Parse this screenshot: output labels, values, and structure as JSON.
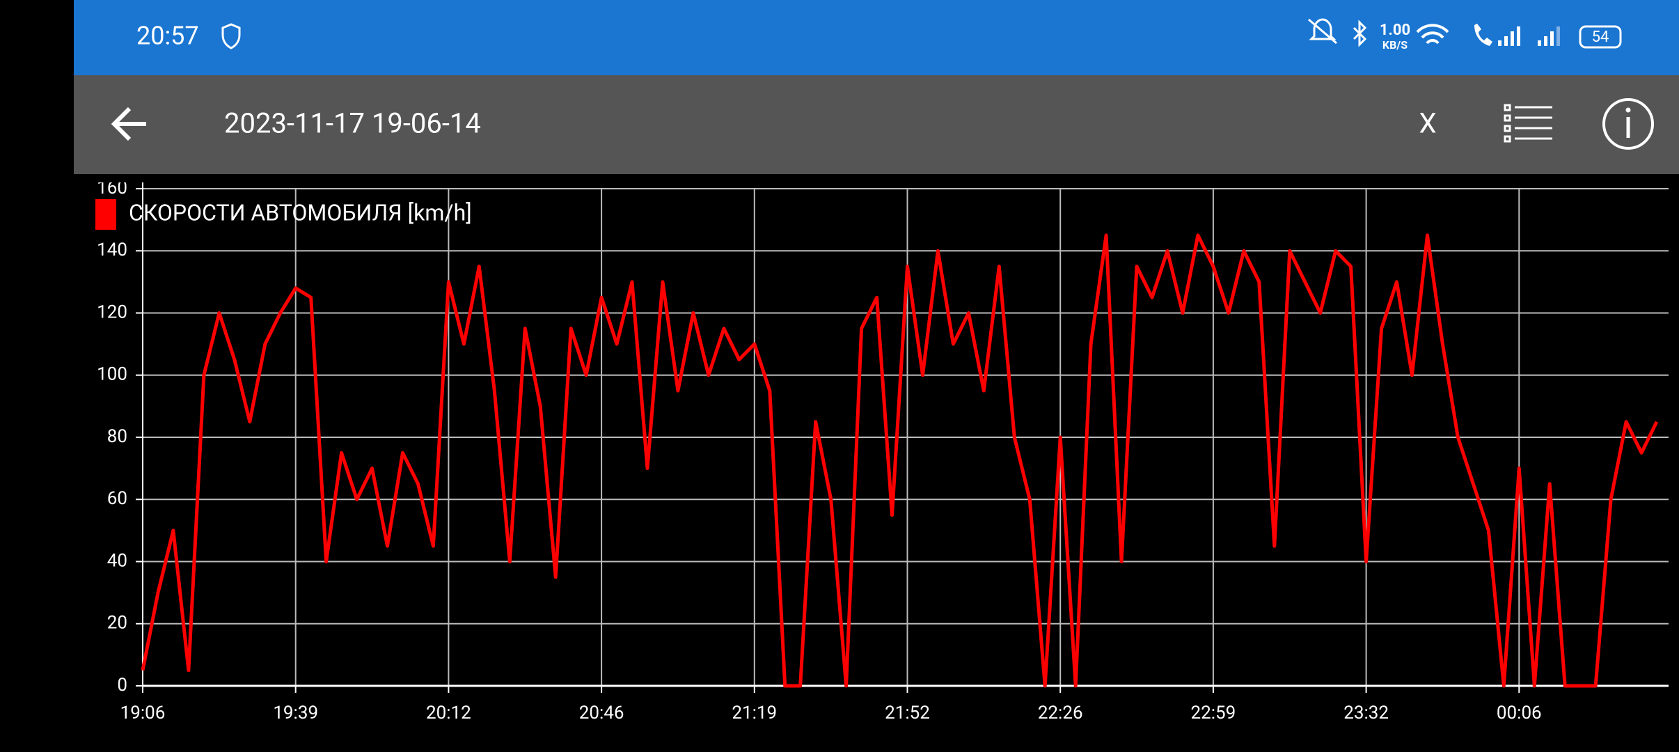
{
  "status_bar": {
    "time": "20:57",
    "network_speed": "1.00",
    "network_unit": "KB/S",
    "battery": "54"
  },
  "app_bar": {
    "title": "2023-11-17 19-06-14",
    "close": "X"
  },
  "chart_data": {
    "type": "line",
    "categories": [
      "19:06",
      null,
      null,
      null,
      null,
      null,
      null,
      null,
      null,
      null,
      "19:39",
      null,
      null,
      null,
      null,
      null,
      null,
      null,
      null,
      null,
      "20:12",
      null,
      null,
      null,
      null,
      null,
      null,
      null,
      null,
      null,
      "20:46",
      null,
      null,
      null,
      null,
      null,
      null,
      null,
      null,
      null,
      "21:19",
      null,
      null,
      null,
      null,
      null,
      null,
      null,
      null,
      null,
      "21:52",
      null,
      null,
      null,
      null,
      null,
      null,
      null,
      null,
      null,
      "22:26",
      null,
      null,
      null,
      null,
      null,
      null,
      null,
      null,
      null,
      "22:59",
      null,
      null,
      null,
      null,
      null,
      null,
      null,
      null,
      null,
      "23:32",
      null,
      null,
      null,
      null,
      null,
      null,
      null,
      null,
      null,
      "00:06",
      null,
      null,
      null,
      null,
      null,
      null,
      null,
      null,
      null
    ],
    "series": [
      {
        "name": "СКОРОСТИ АВТОМОБИЛЯ [km/h]",
        "color": "#ff0000",
        "values": [
          5,
          30,
          50,
          5,
          100,
          120,
          105,
          85,
          110,
          120,
          128,
          125,
          40,
          75,
          60,
          70,
          45,
          75,
          65,
          45,
          130,
          110,
          135,
          95,
          40,
          115,
          90,
          35,
          115,
          100,
          125,
          110,
          130,
          70,
          130,
          95,
          120,
          100,
          115,
          105,
          110,
          95,
          0,
          0,
          85,
          60,
          0,
          115,
          125,
          55,
          135,
          100,
          140,
          110,
          120,
          95,
          135,
          80,
          60,
          0,
          80,
          0,
          110,
          145,
          40,
          135,
          125,
          140,
          120,
          145,
          135,
          120,
          140,
          130,
          45,
          140,
          130,
          120,
          140,
          135,
          40,
          115,
          130,
          100,
          145,
          110,
          80,
          65,
          50,
          0,
          70,
          0,
          65,
          0,
          0,
          0,
          60,
          85,
          75,
          85
        ]
      }
    ],
    "ylim": [
      0,
      160
    ],
    "yticks": [
      0,
      20,
      40,
      60,
      80,
      100,
      120,
      140,
      160
    ],
    "grid": true,
    "legend": "top-left"
  }
}
